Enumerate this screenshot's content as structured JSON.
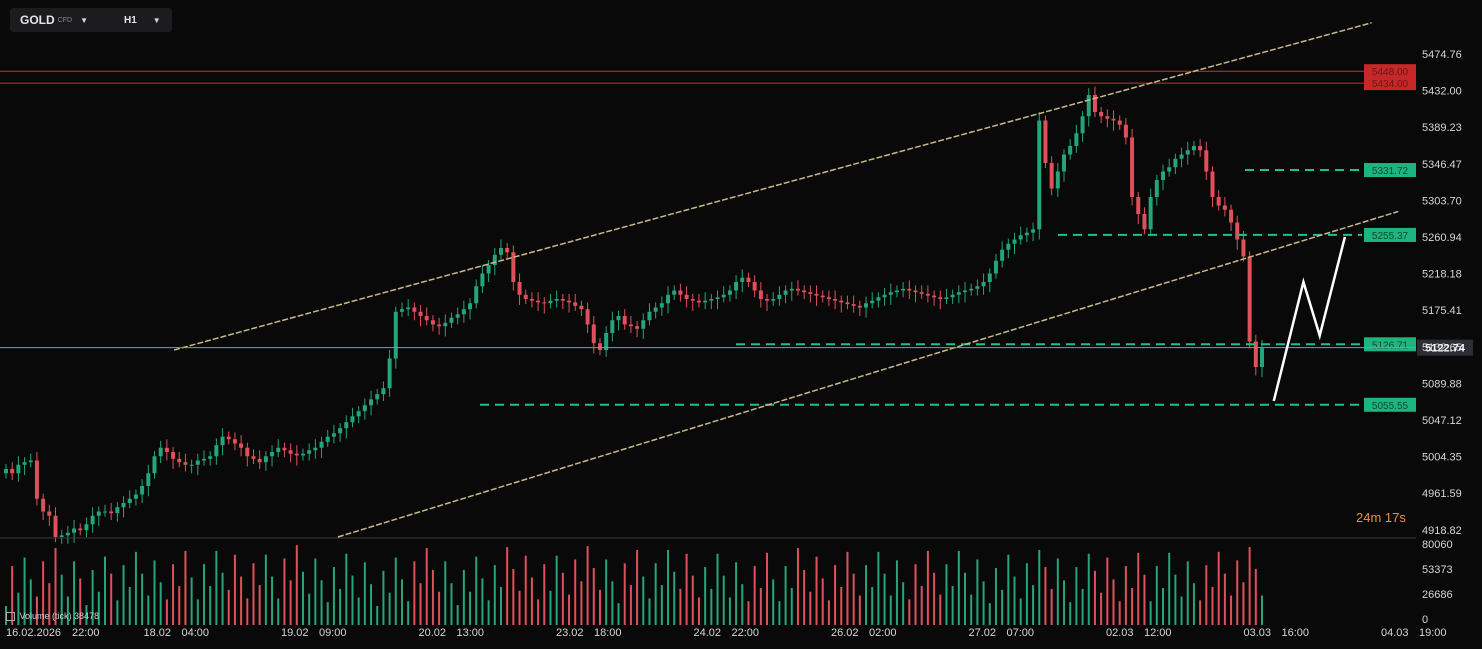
{
  "toolbar": {
    "symbol": "GOLD",
    "symbol_type": "CFD",
    "timeframe": "H1"
  },
  "countdown": "24m 17s",
  "volume_indicator": {
    "label": "Volume (tick)",
    "value": "38478"
  },
  "colors": {
    "background": "#090909",
    "bull": "#26a47a",
    "bear": "#e0505a",
    "channel": "#c9b98a",
    "level_green": "#22c08a",
    "level_red": "#d32f2f",
    "price_line": "#7f9bb3",
    "forecast": "#ffffff",
    "countdown": "#e8913c"
  },
  "chart_data": {
    "type": "candlestick",
    "symbol": "GOLD",
    "timeframe": "H1",
    "y_range": [
      4900,
      5520
    ],
    "price_ticks": [
      "5474.76",
      "5432.00",
      "5389.23",
      "5346.47",
      "5303.70",
      "5260.94",
      "5218.18",
      "5175.41",
      "5132.65",
      "5089.88",
      "5047.12",
      "5004.35",
      "4961.59",
      "4918.82"
    ],
    "x_ticks": [
      "16.02.2026",
      "22:00",
      "18.02",
      "04:00",
      "19.02",
      "09:00",
      "20.02",
      "13:00",
      "23.02",
      "18:00",
      "24.02",
      "22:00",
      "26.02",
      "02:00",
      "27.02",
      "07:00",
      "02.03",
      "12:00",
      "03.03",
      "16:00",
      "04.03",
      "19:00"
    ],
    "current_price": "5122.74",
    "horizontal_levels": [
      {
        "label": "5448.00",
        "value": 5448.0,
        "color": "red"
      },
      {
        "label": "5434.00",
        "value": 5434.0,
        "color": "red"
      },
      {
        "label": "5331.72",
        "value": 5331.72,
        "color": "green"
      },
      {
        "label": "5255.37",
        "value": 5255.37,
        "color": "green"
      },
      {
        "label": "5126.71",
        "value": 5126.71,
        "color": "green"
      },
      {
        "label": "5055.55",
        "value": 5055.55,
        "color": "green"
      }
    ],
    "ascending_channel": {
      "upper": [
        [
          0.1175,
          5120
        ],
        [
          0.9255,
          5505
        ]
      ],
      "lower": [
        [
          0.228,
          4900
        ],
        [
          0.9435,
          5283
        ]
      ]
    },
    "forecast_path": [
      [
        0.8595,
        5060
      ],
      [
        0.8795,
        5200
      ],
      [
        0.8905,
        5137
      ],
      [
        0.9075,
        5253
      ]
    ],
    "candles_closes": [
      4980,
      4975,
      4985,
      4988,
      4990,
      4945,
      4930,
      4925,
      4900,
      4902,
      4905,
      4910,
      4908,
      4915,
      4925,
      4930,
      4930,
      4928,
      4935,
      4940,
      4945,
      4950,
      4960,
      4975,
      4995,
      5005,
      5000,
      4992,
      4988,
      4985,
      4985,
      4990,
      4992,
      4995,
      5008,
      5018,
      5015,
      5010,
      5005,
      4995,
      4992,
      4988,
      4995,
      5000,
      5005,
      5002,
      4998,
      4996,
      4998,
      5002,
      5005,
      5012,
      5018,
      5022,
      5028,
      5035,
      5042,
      5048,
      5055,
      5062,
      5068,
      5075,
      5110,
      5165,
      5168,
      5170,
      5165,
      5160,
      5155,
      5150,
      5148,
      5152,
      5158,
      5162,
      5168,
      5175,
      5195,
      5210,
      5220,
      5232,
      5240,
      5235,
      5200,
      5185,
      5180,
      5178,
      5176,
      5175,
      5178,
      5180,
      5178,
      5176,
      5172,
      5168,
      5150,
      5128,
      5120,
      5140,
      5155,
      5160,
      5150,
      5148,
      5145,
      5155,
      5165,
      5170,
      5175,
      5185,
      5190,
      5185,
      5180,
      5178,
      5176,
      5178,
      5180,
      5182,
      5185,
      5190,
      5200,
      5205,
      5200,
      5190,
      5180,
      5178,
      5180,
      5185,
      5190,
      5192,
      5190,
      5188,
      5186,
      5184,
      5182,
      5180,
      5178,
      5176,
      5174,
      5172,
      5170,
      5175,
      5178,
      5182,
      5185,
      5188,
      5190,
      5192,
      5190,
      5188,
      5186,
      5184,
      5182,
      5180,
      5182,
      5185,
      5188,
      5190,
      5192,
      5195,
      5200,
      5210,
      5225,
      5238,
      5245,
      5250,
      5255,
      5258,
      5262,
      5390,
      5340,
      5310,
      5330,
      5350,
      5360,
      5375,
      5395,
      5420,
      5400,
      5395,
      5392,
      5390,
      5385,
      5370,
      5300,
      5280,
      5262,
      5300,
      5320,
      5330,
      5335,
      5345,
      5350,
      5355,
      5360,
      5355,
      5330,
      5300,
      5290,
      5285,
      5270,
      5250,
      5230,
      5130,
      5100,
      5122
    ]
  }
}
